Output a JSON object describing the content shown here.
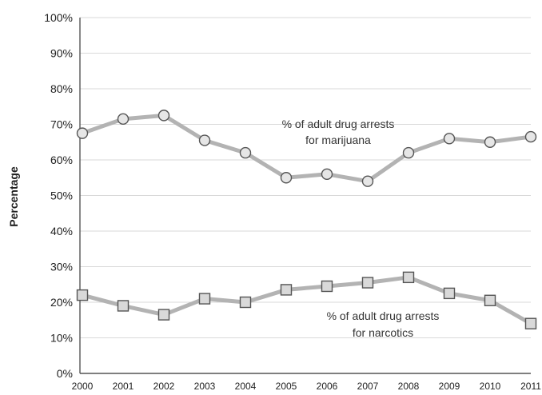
{
  "chart_data": {
    "type": "line",
    "title": "",
    "xlabel": "",
    "ylabel": "Percentage",
    "categories": [
      "2000",
      "2001",
      "2002",
      "2003",
      "2004",
      "2005",
      "2006",
      "2007",
      "2008",
      "2009",
      "2010",
      "2011"
    ],
    "ylim": [
      0,
      100
    ],
    "y_ticks": [
      "0%",
      "10%",
      "20%",
      "30%",
      "40%",
      "50%",
      "60%",
      "70%",
      "80%",
      "90%",
      "100%"
    ],
    "grid": true,
    "legend": "none",
    "series": [
      {
        "annotation": [
          "% of adult drug arrests",
          "for marijuana"
        ],
        "marker": "circle",
        "line_color": "#b3b3b3",
        "marker_fill": "#e6e6e6",
        "values": [
          67.5,
          71.5,
          72.5,
          65.5,
          62,
          55,
          56,
          54,
          62,
          66,
          65,
          66.5
        ]
      },
      {
        "annotation": [
          "% of adult drug arrests",
          "for narcotics"
        ],
        "marker": "square",
        "line_color": "#b3b3b3",
        "marker_fill": "#d9d9d9",
        "values": [
          22,
          19,
          16.5,
          21,
          20,
          23.5,
          24.5,
          25.5,
          27,
          22.5,
          20.5,
          14
        ]
      }
    ]
  }
}
